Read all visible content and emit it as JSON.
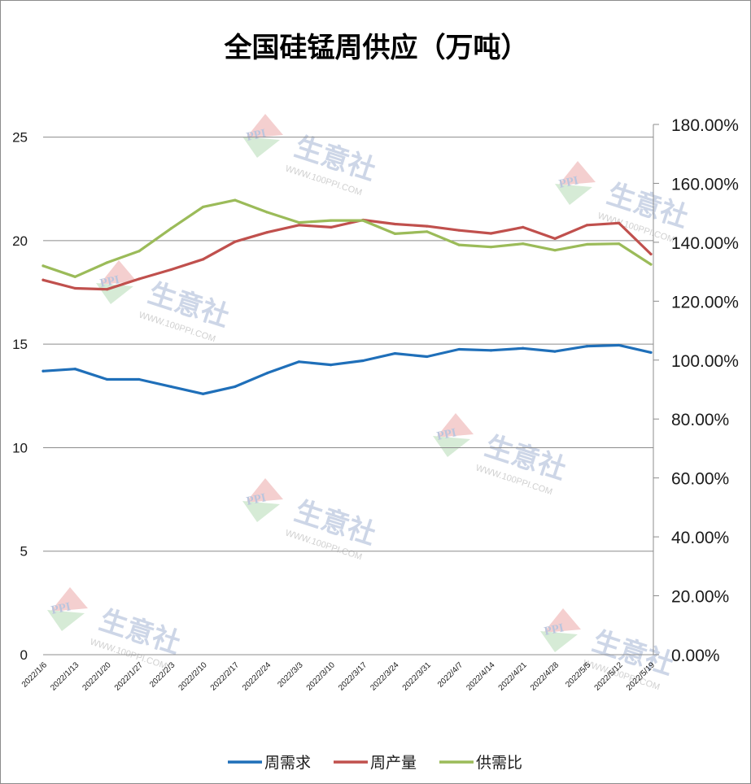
{
  "chart_data": {
    "type": "line",
    "title": "全国硅锰周供应（万吨）",
    "categories": [
      "2022/1/6",
      "2022/1/13",
      "2022/1/20",
      "2022/1/27",
      "2022/2/3",
      "2022/2/10",
      "2022/2/17",
      "2022/2/24",
      "2022/3/3",
      "2022/3/10",
      "2022/3/17",
      "2022/3/24",
      "2022/3/31",
      "2022/4/7",
      "2022/4/14",
      "2022/4/21",
      "2022/4/28",
      "2022/5/5",
      "2022/5/12",
      "2022/5/19"
    ],
    "y_ticks": [
      "0",
      "5",
      "10",
      "15",
      "20",
      "25"
    ],
    "ylim": [
      0,
      27.5
    ],
    "y2_ticks": [
      "0.00%",
      "20.00%",
      "40.00%",
      "60.00%",
      "80.00%",
      "100.00%",
      "120.00%",
      "140.00%",
      "160.00%",
      "180.00%"
    ],
    "y2lim": [
      0,
      180
    ],
    "grid": "horizontal",
    "legend_position": "bottom",
    "watermark": {
      "text": "生意社",
      "url": "WWW.100PPI.COM",
      "logo": "PPI"
    },
    "series": [
      {
        "name": "周需求",
        "axis": "left",
        "color": "#1f6fb9",
        "values": [
          13.7,
          13.8,
          13.3,
          13.3,
          12.95,
          12.6,
          12.95,
          13.6,
          14.15,
          14.0,
          14.2,
          14.55,
          14.4,
          14.75,
          14.7,
          14.8,
          14.65,
          14.9,
          14.95,
          14.6
        ]
      },
      {
        "name": "周产量",
        "axis": "left",
        "color": "#c0504d",
        "values": [
          18.1,
          17.7,
          17.65,
          18.15,
          18.6,
          19.1,
          19.95,
          20.4,
          20.75,
          20.65,
          21.0,
          20.8,
          20.7,
          20.5,
          20.35,
          20.65,
          20.1,
          20.75,
          20.85,
          19.35
        ]
      },
      {
        "name": "供需比",
        "axis": "right",
        "color": "#9bbb59",
        "values": [
          132.0,
          128.3,
          133.1,
          137.0,
          144.7,
          152.0,
          154.3,
          150.2,
          146.7,
          147.4,
          147.4,
          142.9,
          143.6,
          139.1,
          138.4,
          139.5,
          137.3,
          139.3,
          139.5,
          132.5
        ]
      }
    ]
  }
}
